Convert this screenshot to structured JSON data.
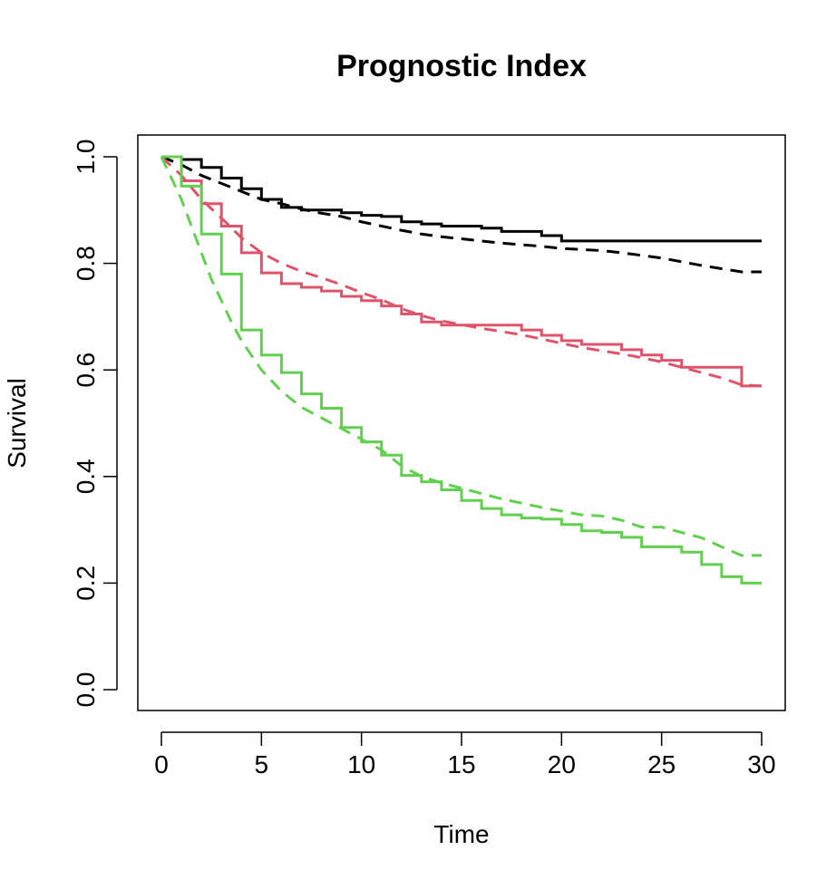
{
  "chart_data": {
    "type": "line",
    "title": "Prognostic Index",
    "xlabel": "Time",
    "ylabel": "Survival",
    "xlim": [
      0,
      30
    ],
    "ylim": [
      0,
      1
    ],
    "xticks": [
      0,
      5,
      10,
      15,
      20,
      25,
      30
    ],
    "yticks": [
      0.0,
      0.2,
      0.4,
      0.6,
      0.8,
      1.0
    ],
    "ytick_labels": [
      "0.0",
      "0.2",
      "0.4",
      "0.6",
      "0.8",
      "1.0"
    ],
    "grid": false,
    "legend": "none",
    "series": [
      {
        "color": "#000000",
        "style": "step",
        "x": [
          0,
          1,
          2,
          3,
          4,
          5,
          6,
          7,
          8,
          9,
          10,
          11,
          12,
          13,
          14,
          15,
          16,
          17,
          18,
          19,
          20,
          21,
          22,
          23,
          24,
          25,
          26,
          27,
          28,
          29,
          30
        ],
        "y": [
          1.0,
          0.995,
          0.98,
          0.96,
          0.94,
          0.92,
          0.905,
          0.9,
          0.9,
          0.895,
          0.89,
          0.888,
          0.878,
          0.874,
          0.87,
          0.87,
          0.866,
          0.86,
          0.86,
          0.852,
          0.842,
          0.842,
          0.842,
          0.842,
          0.842,
          0.842,
          0.842,
          0.842,
          0.842,
          0.842,
          0.842
        ]
      },
      {
        "color": "#000000",
        "style": "dashed",
        "x": [
          0,
          1,
          2,
          3,
          4,
          5,
          6,
          7,
          8,
          9,
          10,
          11,
          12,
          13,
          14,
          15,
          16,
          17,
          18,
          19,
          20,
          21,
          22,
          23,
          24,
          25,
          26,
          27,
          28,
          29,
          30
        ],
        "y": [
          1.0,
          0.985,
          0.965,
          0.95,
          0.935,
          0.92,
          0.912,
          0.902,
          0.894,
          0.888,
          0.878,
          0.87,
          0.862,
          0.855,
          0.85,
          0.846,
          0.842,
          0.838,
          0.835,
          0.832,
          0.828,
          0.826,
          0.824,
          0.82,
          0.815,
          0.81,
          0.803,
          0.796,
          0.79,
          0.784,
          0.784
        ]
      },
      {
        "color": "#df536b",
        "style": "step",
        "x": [
          0,
          1,
          2,
          3,
          4,
          5,
          6,
          7,
          8,
          9,
          10,
          11,
          12,
          13,
          14,
          15,
          16,
          17,
          18,
          19,
          20,
          21,
          22,
          23,
          24,
          25,
          26,
          27,
          28,
          29,
          30
        ],
        "y": [
          1.0,
          0.955,
          0.912,
          0.87,
          0.82,
          0.782,
          0.762,
          0.755,
          0.748,
          0.738,
          0.73,
          0.72,
          0.705,
          0.69,
          0.684,
          0.684,
          0.684,
          0.684,
          0.675,
          0.665,
          0.655,
          0.648,
          0.648,
          0.638,
          0.628,
          0.618,
          0.605,
          0.605,
          0.605,
          0.57,
          0.57
        ]
      },
      {
        "color": "#df536b",
        "style": "dashed",
        "x": [
          0,
          1,
          2,
          3,
          4,
          5,
          6,
          7,
          8,
          9,
          10,
          11,
          12,
          13,
          14,
          15,
          16,
          17,
          18,
          19,
          20,
          21,
          22,
          23,
          24,
          25,
          26,
          27,
          28,
          29,
          30
        ],
        "y": [
          1.0,
          0.965,
          0.92,
          0.885,
          0.848,
          0.82,
          0.8,
          0.785,
          0.773,
          0.76,
          0.745,
          0.732,
          0.715,
          0.702,
          0.692,
          0.685,
          0.678,
          0.672,
          0.666,
          0.658,
          0.65,
          0.642,
          0.636,
          0.63,
          0.623,
          0.615,
          0.605,
          0.595,
          0.585,
          0.572,
          0.57
        ]
      },
      {
        "color": "#61d04f",
        "style": "step",
        "x": [
          0,
          1,
          2,
          3,
          4,
          5,
          6,
          7,
          8,
          9,
          10,
          11,
          12,
          13,
          14,
          15,
          16,
          17,
          18,
          19,
          20,
          21,
          22,
          23,
          24,
          25,
          26,
          27,
          28,
          29,
          30
        ],
        "y": [
          1.0,
          0.945,
          0.855,
          0.78,
          0.675,
          0.628,
          0.595,
          0.555,
          0.528,
          0.492,
          0.465,
          0.44,
          0.402,
          0.39,
          0.375,
          0.355,
          0.34,
          0.328,
          0.322,
          0.32,
          0.31,
          0.298,
          0.295,
          0.286,
          0.268,
          0.268,
          0.258,
          0.235,
          0.212,
          0.2,
          0.2
        ]
      },
      {
        "color": "#61d04f",
        "style": "dashed",
        "x": [
          0,
          0.5,
          1,
          1.5,
          2,
          2.5,
          3,
          3.5,
          4,
          5,
          6,
          7,
          8,
          9,
          10,
          11,
          12,
          13,
          14,
          15,
          16,
          17,
          18,
          19,
          20,
          21,
          22,
          23,
          24,
          25,
          26,
          27,
          28,
          29,
          30
        ],
        "y": [
          1.0,
          0.96,
          0.92,
          0.87,
          0.82,
          0.77,
          0.73,
          0.69,
          0.655,
          0.6,
          0.56,
          0.53,
          0.51,
          0.49,
          0.47,
          0.45,
          0.42,
          0.4,
          0.388,
          0.378,
          0.368,
          0.358,
          0.35,
          0.342,
          0.335,
          0.328,
          0.326,
          0.318,
          0.305,
          0.305,
          0.295,
          0.285,
          0.268,
          0.252,
          0.252
        ]
      }
    ]
  }
}
